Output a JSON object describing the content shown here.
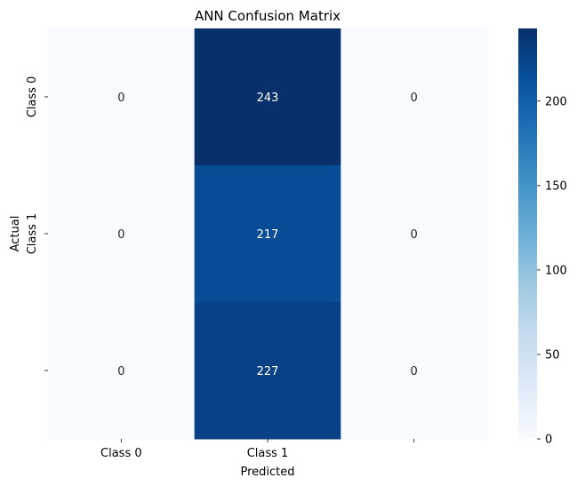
{
  "chart_data": {
    "type": "heatmap",
    "title": "ANN Confusion Matrix",
    "xlabel": "Predicted",
    "ylabel": "Actual",
    "x_tick_labels": [
      "Class 0",
      "Class 1",
      ""
    ],
    "y_tick_labels": [
      "Class 0",
      "Class 1",
      ""
    ],
    "values": [
      [
        0,
        243,
        0
      ],
      [
        0,
        217,
        0
      ],
      [
        0,
        227,
        0
      ]
    ],
    "colormap": "Blues",
    "vmin": 0,
    "vmax": 243,
    "colorbar_ticks": [
      0,
      50,
      100,
      150,
      200
    ],
    "colors": {
      "low": "#f7fbff",
      "high": "#08306b",
      "text_dark": "#262626",
      "text_light": "#ffffff"
    }
  }
}
